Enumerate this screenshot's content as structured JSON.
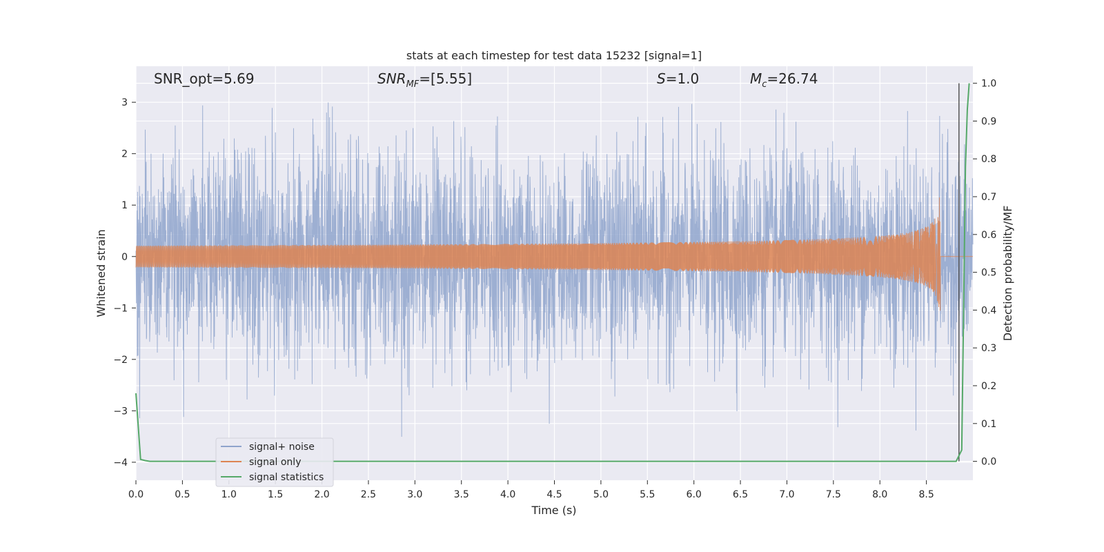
{
  "chart_data": {
    "type": "line",
    "title": "stats at each timestep for test data 15232 [signal=1]",
    "xlabel": "Time (s)",
    "ylabel": "Whitened strain",
    "y2label": "Detection probability/MF",
    "xlim": [
      0.0,
      9.0
    ],
    "ylim": [
      -4.35,
      3.7
    ],
    "y2lim": [
      -0.05,
      1.045
    ],
    "x_ticks": [
      "0.0",
      "0.5",
      "1.0",
      "1.5",
      "2.0",
      "2.5",
      "3.0",
      "3.5",
      "4.0",
      "4.5",
      "5.0",
      "5.5",
      "6.0",
      "6.5",
      "7.0",
      "7.5",
      "8.0",
      "8.5"
    ],
    "y_ticks": [
      "3",
      "2",
      "1",
      "0",
      "−1",
      "−2",
      "−3",
      "−4"
    ],
    "y2_ticks": [
      "1.0",
      "0.9",
      "0.8",
      "0.7",
      "0.6",
      "0.5",
      "0.4",
      "0.3",
      "0.2",
      "0.1",
      "0.0"
    ],
    "grid": true,
    "legend_position": "lower-left",
    "annotations": {
      "snr_opt": "SNR_opt=5.69",
      "snr_mf": "[5.55]",
      "s": "=1.0",
      "mc": "=26.74"
    },
    "series": [
      {
        "name": "signal+ noise",
        "color": "#8fa4cc",
        "axis": "left",
        "description": "whitened noise-dominated strain, range roughly -4 to 3",
        "noise_sigma": 1.0,
        "noise_extent": [
          -4.0,
          3.0
        ]
      },
      {
        "name": "signal only",
        "color": "#dd8452",
        "axis": "left",
        "description": "chirp waveform growing in amplitude until merger near 8.65 s",
        "merger_time": 8.65,
        "peak_amplitude": 1.15
      },
      {
        "name": "signal statistics",
        "color": "#55a868",
        "axis": "right",
        "x": [
          0.0,
          0.05,
          0.1,
          0.15,
          0.2,
          8.75,
          8.82,
          8.85,
          8.88,
          8.9,
          8.92,
          8.94,
          8.96
        ],
        "y": [
          0.18,
          0.005,
          0.002,
          0.0,
          0.0,
          0.0,
          0.0,
          0.015,
          0.03,
          0.4,
          0.78,
          0.93,
          1.0
        ]
      }
    ],
    "trigger_line": {
      "x": 8.85,
      "color": "#555555"
    }
  },
  "colors": {
    "plot_bg": "#eaeaf2",
    "grid": "#ffffff",
    "text": "#262626"
  }
}
